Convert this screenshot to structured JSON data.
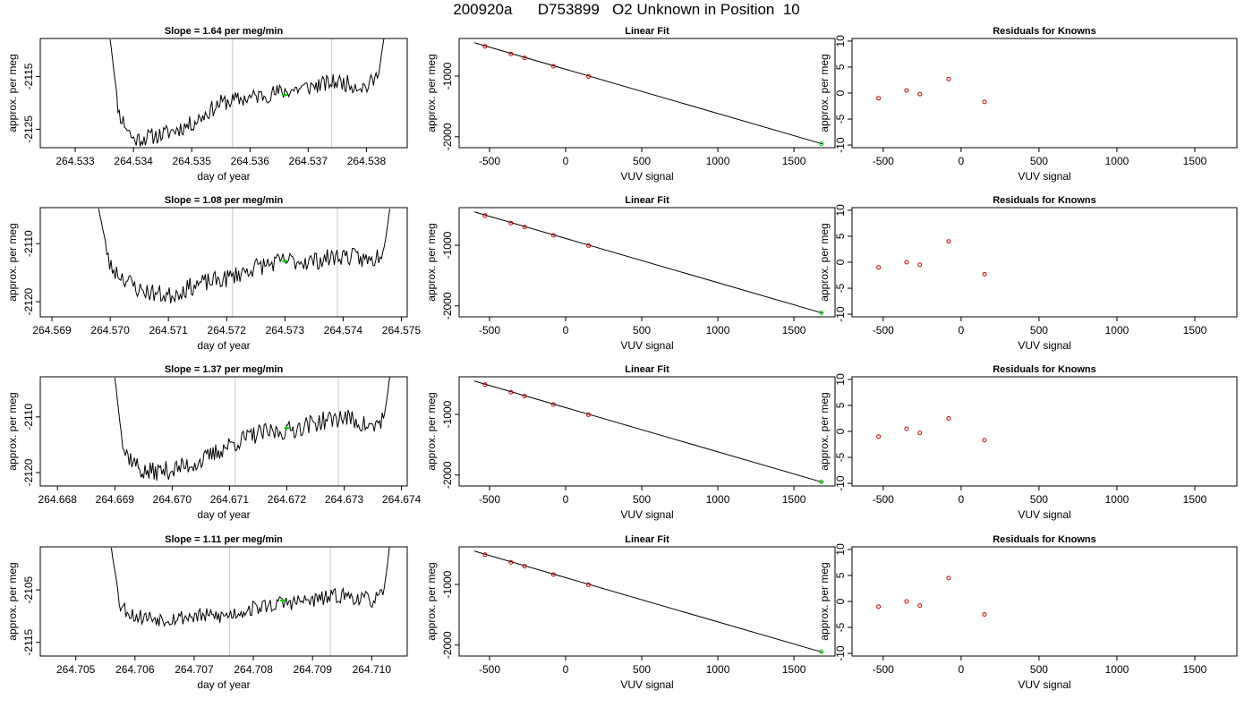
{
  "page": {
    "title": "200920a      D753899   O2 Unknown in Position  10"
  },
  "chart_data": [
    {
      "type": "line",
      "title": "Slope =  1.64  per meg/min",
      "xlabel": "day of year",
      "ylabel": "approx. per meg",
      "xlim": [
        264.5324,
        264.5387
      ],
      "ylim": [
        -2128.5,
        -2107.8
      ],
      "xticks": [
        "264.533",
        "264.534",
        "264.535",
        "264.536",
        "264.537",
        "264.538"
      ],
      "xtick_values": [
        264.533,
        264.534,
        264.535,
        264.536,
        264.537,
        264.538
      ],
      "yticks": [
        "-2125",
        "-2115"
      ],
      "ytick_values": [
        -2125,
        -2115
      ],
      "vlines": [
        264.5357,
        264.5374
      ],
      "marker": {
        "x": 264.5366,
        "y": -2118.5,
        "color": "#00cc00"
      },
      "series": [
        {
          "color": "#000000",
          "x": [
            264.5336,
            264.53375,
            264.534,
            264.5345,
            264.535,
            264.5355,
            264.536,
            264.5365,
            264.537,
            264.5375,
            264.538,
            264.5382,
            264.5383
          ],
          "y": [
            -2107.8,
            -2122.0,
            -2127.0,
            -2126.0,
            -2124.0,
            -2120.0,
            -2119.0,
            -2118.0,
            -2117.0,
            -2116.0,
            -2117.0,
            -2115.0,
            -2107.8
          ],
          "noise": 1.6,
          "seed": 11
        }
      ]
    },
    {
      "type": "line",
      "title": "Slope =  1.08  per meg/min",
      "xlabel": "day of year",
      "ylabel": "approx. per meg",
      "xlim": [
        264.5688,
        264.5751
      ],
      "ylim": [
        -2122.6,
        -2103.8
      ],
      "xticks": [
        "264.569",
        "264.570",
        "264.571",
        "264.572",
        "264.573",
        "264.574",
        "264.575"
      ],
      "xtick_values": [
        264.569,
        264.57,
        264.571,
        264.572,
        264.573,
        264.574,
        264.575
      ],
      "yticks": [
        "-2120",
        "-2110"
      ],
      "ytick_values": [
        -2120,
        -2110
      ],
      "vlines": [
        264.5721,
        264.5739
      ],
      "marker": {
        "x": 264.573,
        "y": -2113.0,
        "color": "#00cc00"
      },
      "series": [
        {
          "color": "#000000",
          "x": [
            264.5698,
            264.57,
            264.5705,
            264.571,
            264.5715,
            264.572,
            264.5725,
            264.573,
            264.5735,
            264.574,
            264.5745,
            264.5747,
            264.5748
          ],
          "y": [
            -2103.8,
            -2114.0,
            -2118.0,
            -2119.0,
            -2117.0,
            -2116.0,
            -2114.0,
            -2113.0,
            -2113.0,
            -2112.0,
            -2113.0,
            -2111.0,
            -2103.8
          ],
          "noise": 1.6,
          "seed": 23
        }
      ]
    },
    {
      "type": "line",
      "title": "Slope =  1.37  per meg/min",
      "xlabel": "day of year",
      "ylabel": "approx. per meg",
      "xlim": [
        264.6677,
        264.6741
      ],
      "ylim": [
        -2122.4,
        -2102.8
      ],
      "xticks": [
        "264.668",
        "264.669",
        "264.670",
        "264.671",
        "264.672",
        "264.673",
        "264.674"
      ],
      "xtick_values": [
        264.668,
        264.669,
        264.67,
        264.671,
        264.672,
        264.673,
        264.674
      ],
      "yticks": [
        "-2120",
        "-2110"
      ],
      "ytick_values": [
        -2120,
        -2110
      ],
      "vlines": [
        264.6711,
        264.6729
      ],
      "marker": {
        "x": 264.672,
        "y": -2112.0,
        "color": "#00cc00"
      },
      "series": [
        {
          "color": "#000000",
          "x": [
            264.669,
            264.66915,
            264.6695,
            264.67,
            264.6705,
            264.671,
            264.6715,
            264.672,
            264.6725,
            264.673,
            264.6735,
            264.6737,
            264.6738
          ],
          "y": [
            -2102.8,
            -2116.0,
            -2120.0,
            -2119.5,
            -2118.0,
            -2115.0,
            -2113.0,
            -2112.5,
            -2111.0,
            -2110.0,
            -2112.0,
            -2110.0,
            -2102.8
          ],
          "noise": 1.7,
          "seed": 37
        }
      ]
    },
    {
      "type": "line",
      "title": "Slope =  1.11  per meg/min",
      "xlabel": "day of year",
      "ylabel": "approx. per meg",
      "xlim": [
        264.7044,
        264.7106
      ],
      "ylim": [
        -2117.6,
        -2096.8
      ],
      "xticks": [
        "264.705",
        "264.706",
        "264.707",
        "264.708",
        "264.709",
        "264.710"
      ],
      "xtick_values": [
        264.705,
        264.706,
        264.707,
        264.708,
        264.709,
        264.71
      ],
      "yticks": [
        "-2115",
        "-2105"
      ],
      "ytick_values": [
        -2115,
        -2105
      ],
      "vlines": [
        264.7076,
        264.7093
      ],
      "marker": {
        "x": 264.7085,
        "y": -2107.0,
        "color": "#00cc00"
      },
      "series": [
        {
          "color": "#000000",
          "x": [
            264.7056,
            264.70575,
            264.706,
            264.7065,
            264.707,
            264.7075,
            264.708,
            264.7085,
            264.709,
            264.7095,
            264.71,
            264.7102,
            264.7103
          ],
          "y": [
            -2096.8,
            -2108.0,
            -2110.0,
            -2110.5,
            -2110.0,
            -2110.0,
            -2108.5,
            -2107.5,
            -2107.0,
            -2106.0,
            -2107.0,
            -2106.0,
            -2096.8
          ],
          "noise": 1.5,
          "seed": 53
        }
      ]
    },
    {
      "type": "scatter",
      "title": "Linear Fit",
      "xlabel": "VUV signal",
      "ylabel": "approx. per meg",
      "xlim": [
        -700,
        1770
      ],
      "ylim": [
        -2180,
        -380
      ],
      "xticks": [
        "-500",
        "0",
        "500",
        "1000",
        "1500"
      ],
      "xtick_values": [
        -500,
        0,
        500,
        1000,
        1500
      ],
      "yticks": [
        "-1000",
        "-2000"
      ],
      "ytick_values": [
        -1000,
        -2000
      ],
      "fit_line": {
        "x": [
          -600,
          1690
        ],
        "y": [
          -450,
          -2120
        ]
      },
      "series": [
        {
          "color": "#cc0000",
          "x": [
            -530,
            -360,
            -270,
            -80,
            150
          ],
          "y": [
            -510,
            -634,
            -699,
            -838,
            -1006
          ]
        },
        {
          "color": "#00cc00",
          "x": [
            1680
          ],
          "y": [
            -2118
          ]
        }
      ]
    },
    {
      "type": "scatter",
      "title": "Linear Fit",
      "xlabel": "VUV signal",
      "ylabel": "approx. per meg",
      "xlim": [
        -700,
        1770
      ],
      "ylim": [
        -2180,
        -380
      ],
      "xticks": [
        "-500",
        "0",
        "500",
        "1000",
        "1500"
      ],
      "xtick_values": [
        -500,
        0,
        500,
        1000,
        1500
      ],
      "yticks": [
        "-1000",
        "-2000"
      ],
      "ytick_values": [
        -1000,
        -2000
      ],
      "fit_line": {
        "x": [
          -600,
          1690
        ],
        "y": [
          -450,
          -2120
        ]
      },
      "series": [
        {
          "color": "#cc0000",
          "x": [
            -530,
            -360,
            -270,
            -80,
            150
          ],
          "y": [
            -510,
            -634,
            -699,
            -838,
            -1006
          ]
        },
        {
          "color": "#00cc00",
          "x": [
            1680
          ],
          "y": [
            -2113
          ]
        }
      ]
    },
    {
      "type": "scatter",
      "title": "Linear Fit",
      "xlabel": "VUV signal",
      "ylabel": "approx. per meg",
      "xlim": [
        -700,
        1770
      ],
      "ylim": [
        -2180,
        -380
      ],
      "xticks": [
        "-500",
        "0",
        "500",
        "1000",
        "1500"
      ],
      "xtick_values": [
        -500,
        0,
        500,
        1000,
        1500
      ],
      "yticks": [
        "-1000",
        "-2000"
      ],
      "ytick_values": [
        -1000,
        -2000
      ],
      "fit_line": {
        "x": [
          -600,
          1690
        ],
        "y": [
          -450,
          -2120
        ]
      },
      "series": [
        {
          "color": "#cc0000",
          "x": [
            -530,
            -360,
            -270,
            -80,
            150
          ],
          "y": [
            -510,
            -634,
            -699,
            -838,
            -1006
          ]
        },
        {
          "color": "#00cc00",
          "x": [
            1680
          ],
          "y": [
            -2112
          ]
        }
      ]
    },
    {
      "type": "scatter",
      "title": "Linear Fit",
      "xlabel": "VUV signal",
      "ylabel": "approx. per meg",
      "xlim": [
        -700,
        1770
      ],
      "ylim": [
        -2180,
        -380
      ],
      "xticks": [
        "-500",
        "0",
        "500",
        "1000",
        "1500"
      ],
      "xtick_values": [
        -500,
        0,
        500,
        1000,
        1500
      ],
      "yticks": [
        "-1000",
        "-2000"
      ],
      "ytick_values": [
        -1000,
        -2000
      ],
      "fit_line": {
        "x": [
          -600,
          1690
        ],
        "y": [
          -450,
          -2120
        ]
      },
      "series": [
        {
          "color": "#cc0000",
          "x": [
            -530,
            -360,
            -270,
            -80,
            150
          ],
          "y": [
            -510,
            -634,
            -699,
            -838,
            -1006
          ]
        },
        {
          "color": "#00cc00",
          "x": [
            1680
          ],
          "y": [
            -2107
          ]
        }
      ]
    },
    {
      "type": "scatter",
      "title": "Residuals for Knowns",
      "xlabel": "VUV signal",
      "ylabel": "approx. per meg",
      "xlim": [
        -700,
        1770
      ],
      "ylim": [
        -10.5,
        10.5
      ],
      "xticks": [
        "-500",
        "0",
        "500",
        "1000",
        "1500"
      ],
      "xtick_values": [
        -500,
        0,
        500,
        1000,
        1500
      ],
      "yticks": [
        "-10",
        "-5",
        "0",
        "5",
        "10"
      ],
      "ytick_values": [
        -10,
        -5,
        0,
        5,
        10
      ],
      "series": [
        {
          "color": "#cc0000",
          "x": [
            -530,
            -350,
            -265,
            -80,
            150
          ],
          "y": [
            -1.0,
            0.5,
            -0.2,
            2.7,
            -1.7
          ]
        }
      ]
    },
    {
      "type": "scatter",
      "title": "Residuals for Knowns",
      "xlabel": "VUV signal",
      "ylabel": "approx. per meg",
      "xlim": [
        -700,
        1770
      ],
      "ylim": [
        -10.5,
        10.5
      ],
      "xticks": [
        "-500",
        "0",
        "500",
        "1000",
        "1500"
      ],
      "xtick_values": [
        -500,
        0,
        500,
        1000,
        1500
      ],
      "yticks": [
        "-10",
        "-5",
        "0",
        "5",
        "10"
      ],
      "ytick_values": [
        -10,
        -5,
        0,
        5,
        10
      ],
      "series": [
        {
          "color": "#cc0000",
          "x": [
            -530,
            -350,
            -265,
            -80,
            150
          ],
          "y": [
            -1.0,
            0.0,
            -0.5,
            4.0,
            -2.3
          ]
        }
      ]
    },
    {
      "type": "scatter",
      "title": "Residuals for Knowns",
      "xlabel": "VUV signal",
      "ylabel": "approx. per meg",
      "xlim": [
        -700,
        1770
      ],
      "ylim": [
        -10.5,
        10.5
      ],
      "xticks": [
        "-500",
        "0",
        "500",
        "1000",
        "1500"
      ],
      "xtick_values": [
        -500,
        0,
        500,
        1000,
        1500
      ],
      "yticks": [
        "-10",
        "-5",
        "0",
        "5",
        "10"
      ],
      "ytick_values": [
        -10,
        -5,
        0,
        5,
        10
      ],
      "series": [
        {
          "color": "#cc0000",
          "x": [
            -530,
            -350,
            -265,
            -80,
            150
          ],
          "y": [
            -1.0,
            0.5,
            -0.3,
            2.5,
            -1.7
          ]
        }
      ]
    },
    {
      "type": "scatter",
      "title": "Residuals for Knowns",
      "xlabel": "VUV signal",
      "ylabel": "approx. per meg",
      "xlim": [
        -700,
        1770
      ],
      "ylim": [
        -10.5,
        10.5
      ],
      "xticks": [
        "-500",
        "0",
        "500",
        "1000",
        "1500"
      ],
      "xtick_values": [
        -500,
        0,
        500,
        1000,
        1500
      ],
      "yticks": [
        "-10",
        "-5",
        "0",
        "5",
        "10"
      ],
      "ytick_values": [
        -10,
        -5,
        0,
        5,
        10
      ],
      "series": [
        {
          "color": "#cc0000",
          "x": [
            -530,
            -350,
            -265,
            -80,
            150
          ],
          "y": [
            -1.0,
            0.0,
            -0.8,
            4.5,
            -2.5
          ]
        }
      ]
    }
  ]
}
